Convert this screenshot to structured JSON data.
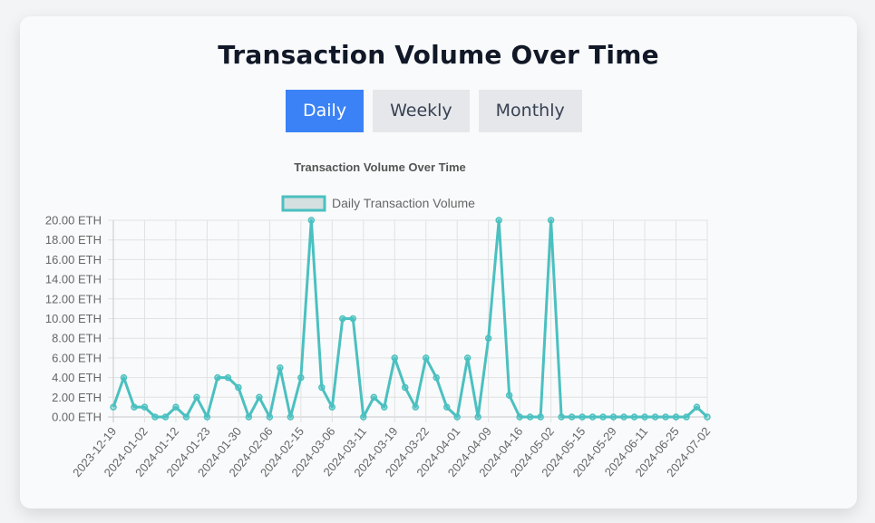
{
  "page": {
    "title": "Transaction Volume Over Time"
  },
  "tabs": [
    {
      "label": "Daily",
      "active": true
    },
    {
      "label": "Weekly",
      "active": false
    },
    {
      "label": "Monthly",
      "active": false
    }
  ],
  "colors": {
    "accent": "#3b82f6",
    "series_line": "#4bc0c0",
    "legend_fill": "#d4dfe0"
  },
  "chart_data": {
    "type": "line",
    "title": "Transaction Volume Over Time",
    "legend": "Daily Transaction Volume",
    "legend_position": "top",
    "ylim": [
      0,
      20
    ],
    "y_ticks": [
      "0.00 ETH",
      "2.00 ETH",
      "4.00 ETH",
      "6.00 ETH",
      "8.00 ETH",
      "10.00 ETH",
      "12.00 ETH",
      "14.00 ETH",
      "16.00 ETH",
      "18.00 ETH",
      "20.00 ETH"
    ],
    "x_tick_labels": [
      "2023-12-19",
      "2024-01-02",
      "2024-01-12",
      "2024-01-23",
      "2024-01-30",
      "2024-02-06",
      "2024-02-15",
      "2024-03-06",
      "2024-03-11",
      "2024-03-19",
      "2024-03-22",
      "2024-04-01",
      "2024-04-09",
      "2024-04-16",
      "2024-05-02",
      "2024-05-15",
      "2024-05-29",
      "2024-06-11",
      "2024-06-25",
      "2024-07-02"
    ],
    "series": [
      {
        "name": "Daily Transaction Volume",
        "values": [
          1,
          4,
          1,
          1,
          0,
          0,
          1,
          0,
          2,
          0,
          4,
          4,
          3,
          0,
          2,
          0,
          5,
          0,
          4,
          20,
          3,
          1,
          10,
          10,
          0,
          2,
          1,
          6,
          3,
          1,
          6,
          4,
          1,
          0,
          6,
          0,
          8,
          20,
          2.2,
          0,
          0,
          0,
          20,
          0,
          0,
          0,
          0,
          0,
          0,
          0,
          0,
          0,
          0,
          0,
          0,
          0,
          1,
          0
        ]
      }
    ],
    "grid": true,
    "xlabel": "",
    "ylabel": ""
  }
}
